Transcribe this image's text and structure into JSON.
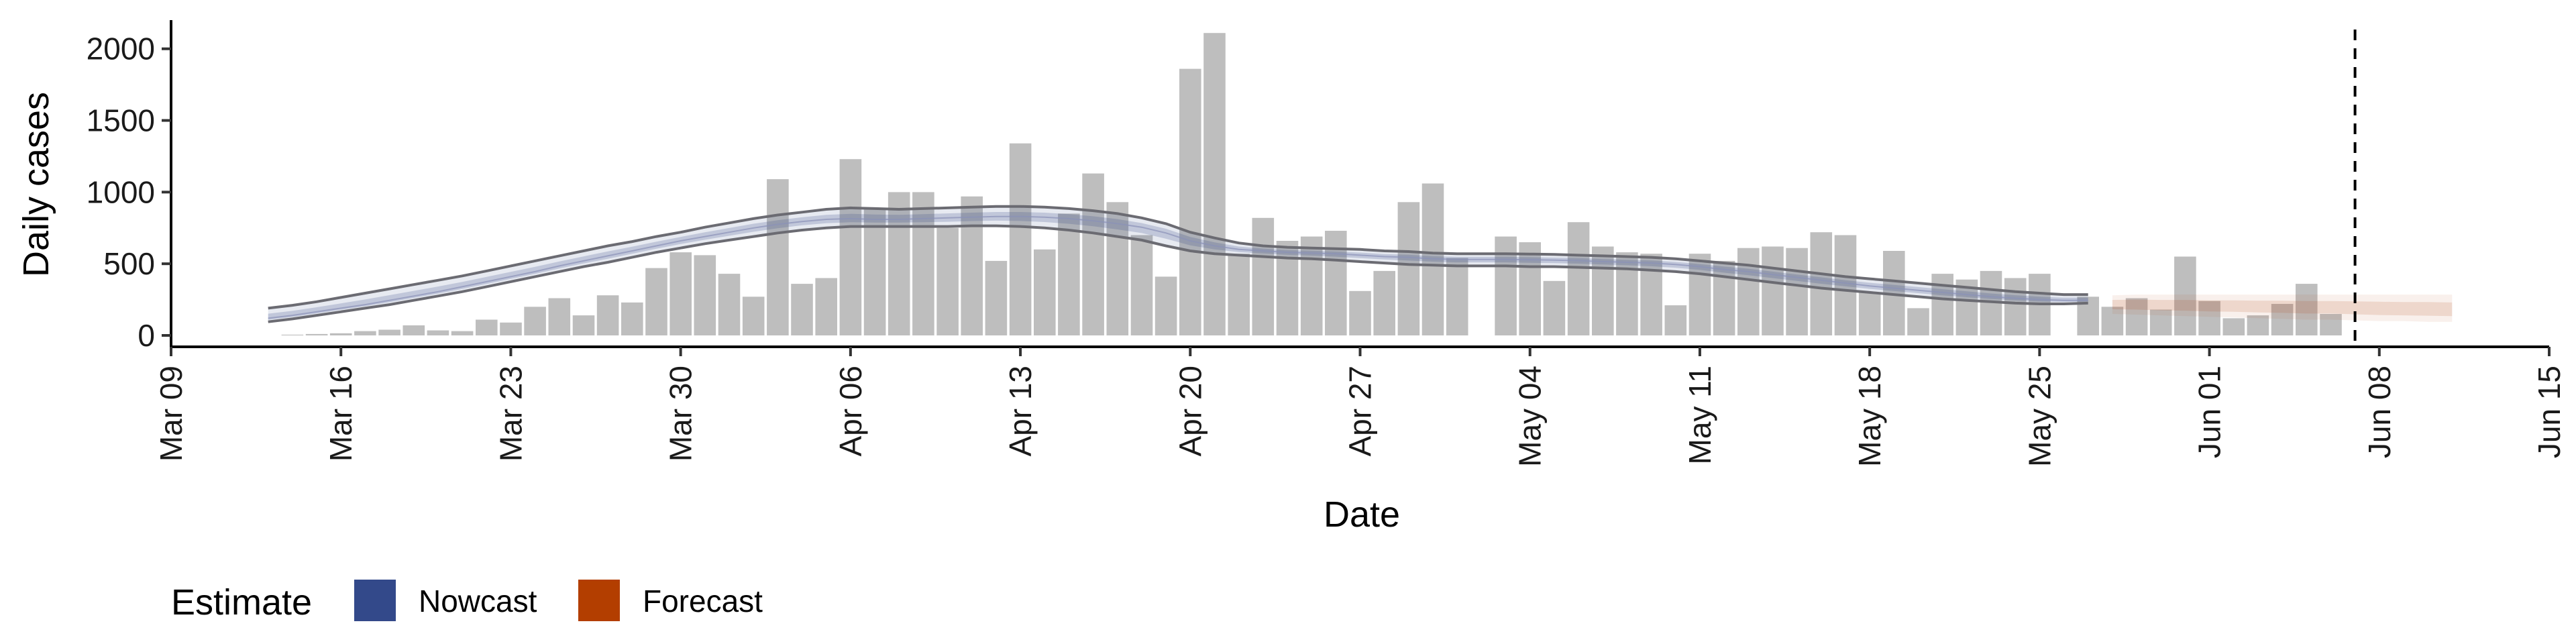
{
  "chart_data": {
    "type": "bar",
    "xlabel": "Date",
    "ylabel": "Daily cases",
    "xlim": [
      "2020-03-09",
      "2020-06-15"
    ],
    "ylim": [
      0,
      2200
    ],
    "y_ticks": [
      0,
      500,
      1000,
      1500,
      2000
    ],
    "x_ticks": [
      {
        "date": "2020-03-09",
        "label": "Mar 09"
      },
      {
        "date": "2020-03-16",
        "label": "Mar 16"
      },
      {
        "date": "2020-03-23",
        "label": "Mar 23"
      },
      {
        "date": "2020-03-30",
        "label": "Mar 30"
      },
      {
        "date": "2020-04-06",
        "label": "Apr 06"
      },
      {
        "date": "2020-04-13",
        "label": "Apr 13"
      },
      {
        "date": "2020-04-20",
        "label": "Apr 20"
      },
      {
        "date": "2020-04-27",
        "label": "Apr 27"
      },
      {
        "date": "2020-05-04",
        "label": "May 04"
      },
      {
        "date": "2020-05-11",
        "label": "May 11"
      },
      {
        "date": "2020-05-18",
        "label": "May 18"
      },
      {
        "date": "2020-05-25",
        "label": "May 25"
      },
      {
        "date": "2020-06-01",
        "label": "Jun 01"
      },
      {
        "date": "2020-06-08",
        "label": "Jun 08"
      },
      {
        "date": "2020-06-15",
        "label": "Jun 15"
      }
    ],
    "bars": {
      "start_date": "2020-03-13",
      "values": [
        0,
        5,
        10,
        15,
        30,
        40,
        70,
        35,
        30,
        110,
        90,
        200,
        260,
        140,
        280,
        230,
        470,
        580,
        560,
        430,
        270,
        1090,
        360,
        400,
        1230,
        880,
        1000,
        1000,
        750,
        970,
        520,
        1340,
        600,
        850,
        1130,
        930,
        700,
        410,
        1860,
        2110,
        570,
        820,
        660,
        690,
        730,
        310,
        450,
        930,
        1060,
        540,
        null,
        690,
        650,
        380,
        790,
        620,
        580,
        570,
        210,
        570,
        520,
        610,
        620,
        610,
        720,
        700,
        300,
        590,
        190,
        430,
        390,
        450,
        400,
        430,
        null,
        270,
        200,
        260,
        180,
        550,
        240,
        120,
        140,
        220,
        360,
        150
      ],
      "color": "#bebebe"
    },
    "nowcast": {
      "name": "Nowcast",
      "color": "#3b4f8a",
      "start_date": "2020-03-13",
      "median": [
        120,
        140,
        165,
        190,
        215,
        245,
        275,
        305,
        340,
        375,
        410,
        445,
        485,
        520,
        555,
        590,
        625,
        660,
        690,
        720,
        750,
        775,
        795,
        810,
        815,
        810,
        810,
        815,
        820,
        825,
        830,
        830,
        825,
        815,
        800,
        780,
        755,
        715,
        660,
        625,
        600,
        590,
        580,
        575,
        570,
        560,
        550,
        545,
        535,
        530,
        530,
        530,
        528,
        525,
        522,
        515,
        510,
        505,
        495,
        480,
        460,
        445,
        425,
        405,
        385,
        365,
        345,
        330,
        315,
        300,
        285,
        270,
        260,
        250,
        245,
        245
      ],
      "lower": [
        95,
        115,
        140,
        165,
        190,
        215,
        245,
        275,
        305,
        340,
        375,
        410,
        445,
        480,
        510,
        545,
        580,
        610,
        640,
        665,
        690,
        715,
        735,
        750,
        760,
        760,
        760,
        760,
        760,
        765,
        765,
        760,
        750,
        735,
        715,
        690,
        665,
        625,
        590,
        570,
        560,
        550,
        540,
        535,
        525,
        515,
        505,
        495,
        490,
        485,
        485,
        485,
        480,
        480,
        475,
        470,
        465,
        455,
        445,
        430,
        410,
        390,
        370,
        350,
        330,
        315,
        300,
        285,
        270,
        255,
        245,
        235,
        225,
        220,
        220,
        225
      ],
      "upper": [
        190,
        210,
        235,
        265,
        295,
        325,
        355,
        385,
        415,
        450,
        485,
        520,
        555,
        590,
        625,
        655,
        690,
        720,
        755,
        785,
        815,
        840,
        860,
        880,
        890,
        885,
        880,
        885,
        890,
        895,
        900,
        900,
        895,
        885,
        870,
        850,
        820,
        780,
        720,
        680,
        645,
        625,
        615,
        610,
        605,
        600,
        590,
        585,
        575,
        570,
        570,
        570,
        568,
        565,
        560,
        555,
        550,
        545,
        535,
        520,
        505,
        490,
        470,
        450,
        430,
        410,
        395,
        380,
        365,
        350,
        335,
        320,
        305,
        295,
        285,
        285
      ]
    },
    "forecast": {
      "name": "Forecast",
      "color": "#b33e0b",
      "start_date": "2020-05-28",
      "median": [
        215,
        215,
        210,
        210,
        205,
        205,
        200,
        200,
        195,
        195,
        190,
        185,
        180,
        180,
        175
      ],
      "lower": [
        150,
        145,
        140,
        135,
        130,
        125,
        120,
        115,
        110,
        110,
        105,
        100,
        100,
        95,
        95
      ],
      "upper": [
        280,
        285,
        285,
        285,
        285,
        285,
        285,
        285,
        285,
        285,
        285,
        285,
        285,
        285,
        285
      ]
    },
    "vline_date": "2020-06-07",
    "legend": {
      "title": "Estimate",
      "position": "bottom-left",
      "items": [
        {
          "label": "Nowcast",
          "color": "#33498a"
        },
        {
          "label": "Forecast",
          "color": "#b33e00"
        }
      ]
    },
    "grid": false
  }
}
